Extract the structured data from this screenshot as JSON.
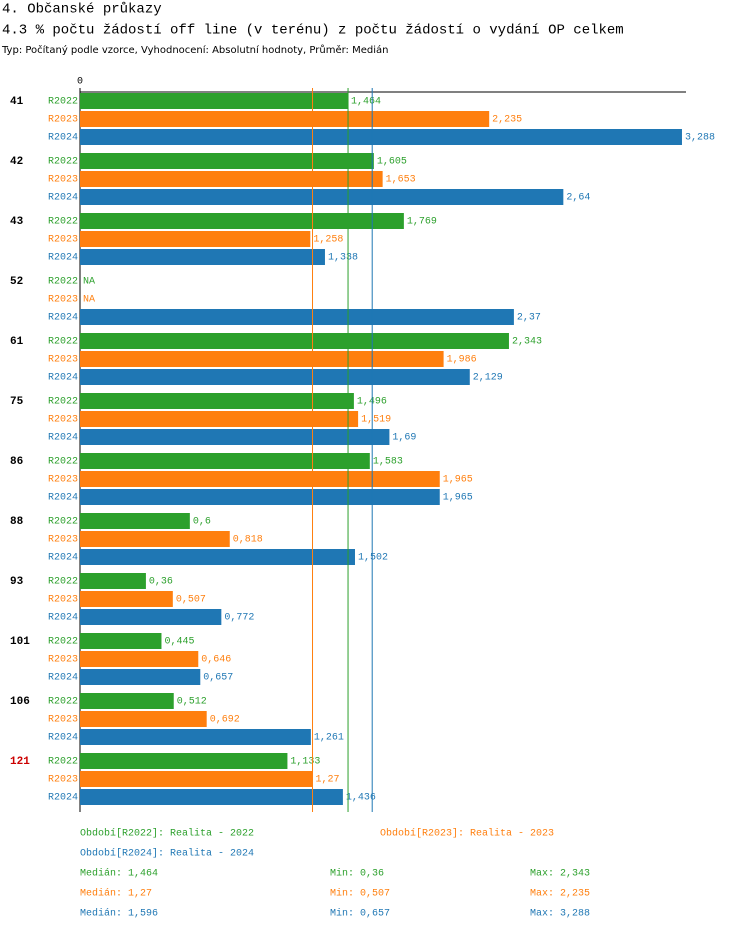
{
  "header": {
    "section": "4. Občanské průkazy",
    "subtitle": "Typ: Počítaný podle vzorce, Vyhodnocení: Absolutní hodnoty, Průměr: Medián"
  },
  "chart_data": {
    "type": "grouped-hbar",
    "title": "4.3 % počtu žádostí off line (v terénu) z počtu žádostí o vydání OP celkem",
    "categories": [
      "41",
      "42",
      "43",
      "52",
      "61",
      "75",
      "86",
      "88",
      "93",
      "101",
      "106",
      "121"
    ],
    "category_colors": [
      "#000000",
      "#000000",
      "#000000",
      "#000000",
      "#000000",
      "#000000",
      "#000000",
      "#000000",
      "#000000",
      "#000000",
      "#000000",
      "#cc0000"
    ],
    "xlim": [
      0,
      3.31
    ],
    "xticks": [
      0
    ],
    "series": [
      {
        "name": "R2022",
        "color": "#2ca02c",
        "legend_label": "Období[R2022]: Realita - 2022",
        "values": [
          1.464,
          1.605,
          1.769,
          null,
          2.343,
          1.496,
          1.583,
          0.6,
          0.36,
          0.445,
          0.512,
          1.133
        ],
        "value_labels": [
          "1,464",
          "1,605",
          "1,769",
          "NA",
          "2,343",
          "1,496",
          "1,583",
          "0,6",
          "0,36",
          "0,445",
          "0,512",
          "1,133"
        ],
        "median": 1.464,
        "median_label": "Medián: 1,464",
        "min_label": "Min: 0,36",
        "max_label": "Max: 2,343"
      },
      {
        "name": "R2023",
        "color": "#ff7f0e",
        "legend_label": "Období[R2023]: Realita - 2023",
        "values": [
          2.235,
          1.653,
          1.258,
          null,
          1.986,
          1.519,
          1.965,
          0.818,
          0.507,
          0.646,
          0.692,
          1.27
        ],
        "value_labels": [
          "2,235",
          "1,653",
          "1,258",
          "NA",
          "1,986",
          "1,519",
          "1,965",
          "0,818",
          "0,507",
          "0,646",
          "0,692",
          "1,27"
        ],
        "median": 1.27,
        "median_label": "Medián: 1,27",
        "min_label": "Min: 0,507",
        "max_label": "Max: 2,235"
      },
      {
        "name": "R2024",
        "color": "#1f77b4",
        "legend_label": "Období[R2024]: Realita - 2024",
        "values": [
          3.288,
          2.64,
          1.338,
          2.37,
          2.129,
          1.69,
          1.965,
          1.502,
          0.772,
          0.657,
          1.261,
          1.436
        ],
        "value_labels": [
          "3,288",
          "2,64",
          "1,338",
          "2,37",
          "2,129",
          "1,69",
          "1,965",
          "1,502",
          "0,772",
          "0,657",
          "1,261",
          "1,436"
        ],
        "median": 1.596,
        "median_label": "Medián: 1,596",
        "min_label": "Min: 0,657",
        "max_label": "Max: 3,288"
      }
    ]
  }
}
